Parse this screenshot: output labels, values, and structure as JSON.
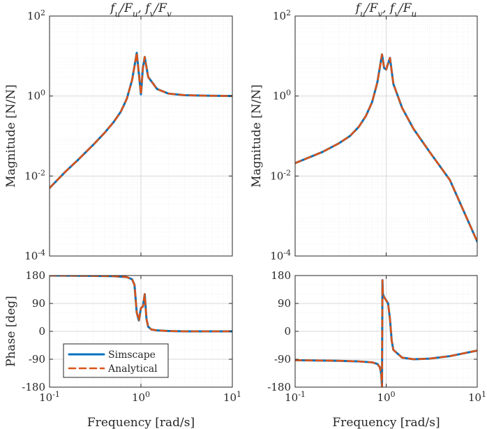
{
  "colors": {
    "simscape": "#0072BD",
    "analytical": "#D95319",
    "grid_major": "#d9d9d9",
    "grid_minor": "#ececec",
    "axis": "#262626"
  },
  "legend": {
    "location": "bottom-left of lower-left subplot",
    "entries": [
      "Simscape",
      "Analytical"
    ]
  },
  "chart_data": [
    {
      "id": "mag_left",
      "type": "line",
      "title": "f_u/F_u, f_v/F_v",
      "xlabel": "",
      "ylabel": "Magnitude [N/N]",
      "xscale": "log",
      "yscale": "log",
      "xlim": [
        0.1,
        10
      ],
      "ylim": [
        0.0001,
        100
      ],
      "grid": true,
      "x_ticks": [
        0.1,
        1,
        10
      ],
      "x_tick_labels": [
        "",
        "",
        ""
      ],
      "y_ticks": [
        0.0001,
        0.01,
        1,
        100
      ],
      "series": [
        {
          "name": "Simscape",
          "style": "solid",
          "x": [
            0.1,
            0.15,
            0.2,
            0.3,
            0.4,
            0.5,
            0.6,
            0.7,
            0.8,
            0.9,
            1.0,
            1.05,
            1.1,
            1.2,
            1.5,
            2,
            3,
            5,
            10
          ],
          "y": [
            0.005,
            0.013,
            0.024,
            0.06,
            0.12,
            0.22,
            0.4,
            0.85,
            2.5,
            12,
            1.1,
            5,
            9.5,
            3.0,
            1.5,
            1.15,
            1.05,
            1.02,
            1.0
          ]
        },
        {
          "name": "Analytical",
          "style": "dashed",
          "x": [
            0.1,
            0.15,
            0.2,
            0.3,
            0.4,
            0.5,
            0.6,
            0.7,
            0.8,
            0.9,
            1.0,
            1.05,
            1.1,
            1.2,
            1.5,
            2,
            3,
            5,
            10
          ],
          "y": [
            0.005,
            0.013,
            0.024,
            0.06,
            0.12,
            0.22,
            0.4,
            0.85,
            2.5,
            12,
            1.1,
            5,
            9.5,
            3.0,
            1.5,
            1.15,
            1.05,
            1.02,
            1.0
          ]
        }
      ]
    },
    {
      "id": "mag_right",
      "type": "line",
      "title": "f_u/F_v, f_v/F_u",
      "xlabel": "",
      "ylabel": "Magnitude [N/N]",
      "xscale": "log",
      "yscale": "log",
      "xlim": [
        0.1,
        10
      ],
      "ylim": [
        0.0001,
        100
      ],
      "grid": true,
      "x_ticks": [
        0.1,
        1,
        10
      ],
      "x_tick_labels": [
        "",
        "",
        ""
      ],
      "y_ticks": [
        0.0001,
        0.01,
        1,
        100
      ],
      "series": [
        {
          "name": "Simscape",
          "style": "solid",
          "x": [
            0.1,
            0.2,
            0.3,
            0.4,
            0.5,
            0.6,
            0.7,
            0.8,
            0.9,
            0.95,
            1.0,
            1.05,
            1.1,
            1.2,
            1.5,
            2,
            3,
            5,
            10
          ],
          "y": [
            0.021,
            0.04,
            0.065,
            0.1,
            0.17,
            0.32,
            0.7,
            2.2,
            11,
            5.0,
            4.6,
            6.5,
            9.0,
            2.0,
            0.5,
            0.15,
            0.04,
            0.008,
            0.00023
          ]
        },
        {
          "name": "Analytical",
          "style": "dashed",
          "x": [
            0.1,
            0.2,
            0.3,
            0.4,
            0.5,
            0.6,
            0.7,
            0.8,
            0.9,
            0.95,
            1.0,
            1.05,
            1.1,
            1.2,
            1.5,
            2,
            3,
            5,
            10
          ],
          "y": [
            0.021,
            0.04,
            0.065,
            0.1,
            0.17,
            0.32,
            0.7,
            2.2,
            11,
            5.0,
            4.6,
            6.5,
            9.0,
            2.0,
            0.5,
            0.15,
            0.04,
            0.008,
            0.00023
          ]
        }
      ]
    },
    {
      "id": "phase_left",
      "type": "line",
      "title": "",
      "xlabel": "Frequency [rad/s]",
      "ylabel": "Phase [deg]",
      "xscale": "log",
      "yscale": "linear",
      "xlim": [
        0.1,
        10
      ],
      "ylim": [
        -180,
        180
      ],
      "grid": true,
      "x_ticks": [
        0.1,
        1,
        10
      ],
      "x_tick_labels": [
        "10^-1",
        "10^0",
        "10^1"
      ],
      "y_ticks": [
        180,
        90,
        0,
        -90,
        -180
      ],
      "legend": true,
      "series": [
        {
          "name": "Simscape",
          "style": "solid",
          "x": [
            0.1,
            0.3,
            0.5,
            0.7,
            0.8,
            0.85,
            0.9,
            0.95,
            1.0,
            1.05,
            1.1,
            1.15,
            1.2,
            1.3,
            1.5,
            2,
            3,
            5,
            10
          ],
          "y": [
            180,
            179,
            178,
            175,
            168,
            150,
            60,
            35,
            75,
            80,
            120,
            40,
            15,
            6,
            3,
            1,
            0,
            0,
            0
          ]
        },
        {
          "name": "Analytical",
          "style": "dashed",
          "x": [
            0.1,
            0.3,
            0.5,
            0.7,
            0.8,
            0.85,
            0.9,
            0.95,
            1.0,
            1.05,
            1.1,
            1.15,
            1.2,
            1.3,
            1.5,
            2,
            3,
            5,
            10
          ],
          "y": [
            180,
            179,
            178,
            175,
            168,
            150,
            60,
            35,
            75,
            80,
            120,
            40,
            15,
            6,
            3,
            1,
            0,
            0,
            0
          ]
        }
      ]
    },
    {
      "id": "phase_right",
      "type": "line",
      "title": "",
      "xlabel": "Frequency [rad/s]",
      "ylabel": "",
      "xscale": "log",
      "yscale": "linear",
      "xlim": [
        0.1,
        10
      ],
      "ylim": [
        -180,
        180
      ],
      "grid": true,
      "x_ticks": [
        0.1,
        1,
        10
      ],
      "x_tick_labels": [
        "10^-1",
        "10^0",
        "10^1"
      ],
      "y_ticks": [
        180,
        90,
        0,
        -90,
        -180
      ],
      "series": [
        {
          "name": "Simscape",
          "style": "solid",
          "x": [
            0.1,
            0.3,
            0.5,
            0.7,
            0.8,
            0.85,
            0.88,
            0.9,
            0.91,
            0.92,
            0.95,
            1.0,
            1.05,
            1.1,
            1.15,
            1.2,
            1.5,
            2,
            3,
            5,
            10
          ],
          "y": [
            -93,
            -95,
            -97,
            -100,
            -105,
            -115,
            -135,
            -180,
            165,
            120,
            110,
            100,
            90,
            40,
            -30,
            -60,
            -85,
            -90,
            -88,
            -80,
            -62
          ]
        },
        {
          "name": "Analytical",
          "style": "dashed",
          "x": [
            0.1,
            0.3,
            0.5,
            0.7,
            0.8,
            0.85,
            0.88,
            0.9,
            0.91,
            0.92,
            0.95,
            1.0,
            1.05,
            1.1,
            1.15,
            1.2,
            1.5,
            2,
            3,
            5,
            10
          ],
          "y": [
            -93,
            -95,
            -97,
            -100,
            -105,
            -115,
            -135,
            -180,
            165,
            120,
            110,
            100,
            90,
            40,
            -30,
            -60,
            -85,
            -90,
            -88,
            -80,
            -62
          ]
        }
      ]
    }
  ]
}
